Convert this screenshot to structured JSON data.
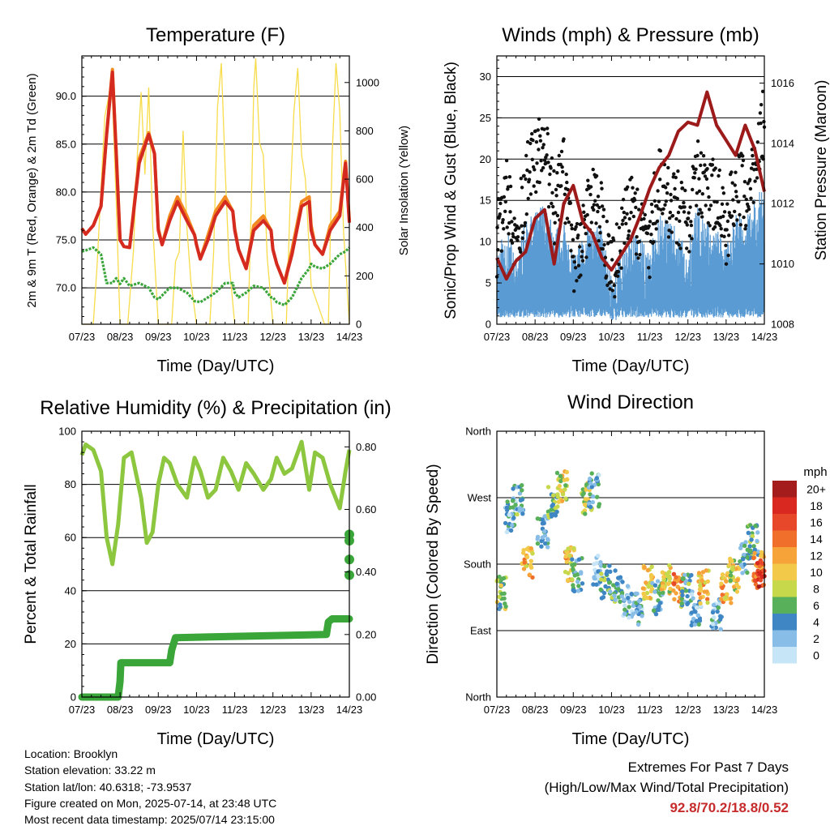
{
  "x_ticks": [
    "07/23",
    "08/23",
    "09/23",
    "10/23",
    "11/23",
    "12/23",
    "13/23",
    "14/23"
  ],
  "x_label": "Time (Day/UTC)",
  "chart_data": [
    {
      "type": "line",
      "title": "Temperature (F)",
      "xlabel": "Time (Day/UTC)",
      "ylabel": "2m & 9m T (Red, Orange) & 2m Td (Green)",
      "ylabel_right": "Solar Insolation (Yellow)",
      "ylim": [
        66.2,
        94.2
      ],
      "ylim_right": [
        0,
        1110
      ],
      "yticks": [
        {
          "v": 70,
          "t": "70.0"
        },
        {
          "v": 75,
          "t": "75.0"
        },
        {
          "v": 80,
          "t": "80.0"
        },
        {
          "v": 85,
          "t": "85.0"
        },
        {
          "v": 90,
          "t": "90.0"
        }
      ],
      "yticks_right": [
        {
          "v": 0,
          "t": "0"
        },
        {
          "v": 200,
          "t": "200"
        },
        {
          "v": 400,
          "t": "400"
        },
        {
          "v": 600,
          "t": "600"
        },
        {
          "v": 800,
          "t": "800"
        },
        {
          "v": 1000,
          "t": "1000"
        }
      ],
      "x_days": [
        0,
        0.1,
        0.3,
        0.5,
        0.65,
        0.8,
        0.9,
        1.0,
        1.1,
        1.25,
        1.5,
        1.75,
        1.9,
        2.0,
        2.1,
        2.3,
        2.5,
        2.75,
        2.95,
        3.0,
        3.1,
        3.3,
        3.5,
        3.75,
        3.95,
        4.0,
        4.1,
        4.3,
        4.5,
        4.75,
        4.95,
        5.0,
        5.1,
        5.3,
        5.5,
        5.75,
        5.95,
        6.0,
        6.1,
        6.3,
        6.5,
        6.75,
        6.9,
        7.0
      ],
      "series": [
        {
          "name": "2m T",
          "color": "#d52a20",
          "values": [
            76.2,
            75.6,
            76.5,
            78.5,
            86,
            92.5,
            84,
            75,
            74.3,
            74.2,
            83,
            86,
            84,
            76,
            74.5,
            77,
            79,
            77,
            75.5,
            74.5,
            73,
            75,
            77.5,
            79,
            78,
            76,
            74,
            72,
            76,
            77,
            76,
            74,
            72.5,
            70.5,
            73.5,
            78.5,
            79,
            76,
            74.5,
            73.5,
            76,
            77.5,
            83,
            76.8
          ]
        },
        {
          "name": "9m T",
          "color": "#f28a20",
          "values": [
            76.2,
            75.6,
            76.5,
            78.5,
            86.2,
            92.8,
            84.2,
            75,
            74.3,
            74.2,
            83.5,
            86.2,
            84,
            76.2,
            74.5,
            77.5,
            79.5,
            77.5,
            75.5,
            74.5,
            73,
            75.5,
            78,
            79.5,
            78,
            76.2,
            74,
            72,
            76.5,
            77.5,
            76,
            74,
            72.5,
            70.5,
            74,
            79,
            79.5,
            76.5,
            74.5,
            73.5,
            76.5,
            78,
            83.2,
            77
          ]
        },
        {
          "name": "2m Td",
          "color": "#3aa63a",
          "values": [
            73.8,
            73.9,
            74.2,
            73.5,
            70.5,
            70.5,
            71,
            70.4,
            71,
            70.2,
            70.5,
            70,
            69,
            68.8,
            69.2,
            70,
            70,
            69.5,
            68.6,
            68.6,
            68.5,
            69,
            69.5,
            70.5,
            70.5,
            69.5,
            69,
            69.5,
            70.2,
            70,
            69,
            69,
            68.5,
            68.2,
            69,
            71,
            72,
            72.5,
            72.2,
            72,
            72.5,
            73.5,
            73.8,
            74.2
          ]
        }
      ],
      "series_right": [
        {
          "name": "Solar Insolation",
          "color": "#f7dc4a",
          "x_days": [
            0,
            0.3,
            0.4,
            0.5,
            0.6,
            0.7,
            0.8,
            0.9,
            1.0,
            1.2,
            1.35,
            1.45,
            1.55,
            1.65,
            1.75,
            1.85,
            2.0,
            2.35,
            2.45,
            2.55,
            2.65,
            2.75,
            2.85,
            3.0,
            3.35,
            3.45,
            3.55,
            3.65,
            3.75,
            3.85,
            4.0,
            4.35,
            4.45,
            4.5,
            4.55,
            4.65,
            4.75,
            4.85,
            5.0,
            5.35,
            5.45,
            5.55,
            5.65,
            5.75,
            5.85,
            6.0,
            6.35,
            6.45,
            6.55,
            6.65,
            6.75,
            6.85,
            7.0
          ],
          "values": [
            0,
            0,
            250,
            560,
            860,
            940,
            930,
            500,
            0,
            0,
            300,
            700,
            960,
            620,
            980,
            420,
            0,
            0,
            260,
            300,
            800,
            400,
            180,
            0,
            0,
            300,
            900,
            1080,
            640,
            260,
            0,
            0,
            600,
            980,
            1100,
            750,
            700,
            280,
            0,
            0,
            500,
            880,
            1060,
            700,
            600,
            160,
            0,
            0,
            700,
            1080,
            880,
            380,
            0
          ]
        }
      ]
    },
    {
      "type": "line",
      "title": "Winds (mph) & Pressure (mb)",
      "xlabel": "Time (Day/UTC)",
      "ylabel": "Sonic/Prop Wind & Gust (Blue, Black)",
      "ylabel_right": "Station Pressure (Maroon)",
      "ylim": [
        0,
        32.5
      ],
      "ylim_right": [
        1008,
        1016.9
      ],
      "yticks": [
        {
          "v": 0,
          "t": "0"
        },
        {
          "v": 5,
          "t": "5"
        },
        {
          "v": 10,
          "t": "10"
        },
        {
          "v": 15,
          "t": "15"
        },
        {
          "v": 20,
          "t": "20"
        },
        {
          "v": 25,
          "t": "25"
        },
        {
          "v": 30,
          "t": "30"
        }
      ],
      "yticks_right": [
        {
          "v": 1008,
          "t": "1008"
        },
        {
          "v": 1010,
          "t": "1010"
        },
        {
          "v": 1012,
          "t": "1012"
        },
        {
          "v": 1014,
          "t": "1014"
        },
        {
          "v": 1016,
          "t": "1016"
        }
      ],
      "x_days": [
        0,
        0.25,
        0.5,
        0.75,
        1.0,
        1.25,
        1.5,
        1.75,
        2.0,
        2.25,
        2.5,
        2.75,
        3.0,
        3.25,
        3.5,
        3.75,
        4.0,
        4.25,
        4.5,
        4.75,
        5.0,
        5.25,
        5.5,
        5.75,
        6.0,
        6.25,
        6.5,
        6.75,
        7.0
      ],
      "series": [
        {
          "name": "Wind",
          "color": "#5a9bd4",
          "values": [
            6,
            8,
            5,
            9,
            10,
            12,
            8,
            9,
            5,
            7,
            9,
            8,
            3,
            5,
            8,
            7,
            5,
            11,
            9,
            8,
            6,
            11,
            9,
            8,
            6,
            10,
            9,
            12,
            13
          ]
        },
        {
          "name": "Gust",
          "color": "#111111",
          "values": [
            10,
            16,
            9,
            17,
            20,
            22,
            14,
            18,
            8,
            11,
            15,
            13,
            6,
            10,
            14,
            12,
            10,
            18,
            15,
            14,
            11,
            18,
            15,
            16,
            11,
            17,
            16,
            19,
            25
          ]
        }
      ],
      "series_right": [
        {
          "name": "Station Pressure",
          "color": "#9c1a1a",
          "values": [
            1010.2,
            1009.5,
            1010.1,
            1010.4,
            1011.5,
            1011.8,
            1010,
            1012,
            1012.6,
            1011.4,
            1011,
            1010.2,
            1009.8,
            1010.3,
            1010.8,
            1011.6,
            1012.5,
            1013.2,
            1013.6,
            1014.4,
            1014.7,
            1014.6,
            1015.7,
            1014.6,
            1014.1,
            1013.6,
            1014.6,
            1013.8,
            1012.4
          ]
        }
      ]
    },
    {
      "type": "line",
      "title": "Relative Humidity (%) & Precipitation (in)",
      "xlabel": "Time (Day/UTC)",
      "ylabel": "Percent & Total Rainfall",
      "ylim": [
        0,
        100
      ],
      "ylim_right": [
        0,
        0.85
      ],
      "yticks": [
        {
          "v": 0,
          "t": "0"
        },
        {
          "v": 20,
          "t": "20"
        },
        {
          "v": 40,
          "t": "40"
        },
        {
          "v": 60,
          "t": "60"
        },
        {
          "v": 80,
          "t": "80"
        },
        {
          "v": 100,
          "t": "100"
        }
      ],
      "yticks_right": [
        {
          "v": 0,
          "t": "0.00"
        },
        {
          "v": 0.2,
          "t": "0.20"
        },
        {
          "v": 0.4,
          "t": "0.40"
        },
        {
          "v": 0.6,
          "t": "0.60"
        },
        {
          "v": 0.8,
          "t": "0.80"
        }
      ],
      "series": [
        {
          "name": "Relative Humidity",
          "color": "#8dc63f",
          "x_days": [
            0,
            0.1,
            0.3,
            0.5,
            0.65,
            0.8,
            0.95,
            1.1,
            1.3,
            1.55,
            1.7,
            1.85,
            2.0,
            2.15,
            2.3,
            2.5,
            2.75,
            2.95,
            3.1,
            3.3,
            3.5,
            3.7,
            3.9,
            4.1,
            4.3,
            4.5,
            4.75,
            4.95,
            5.1,
            5.3,
            5.5,
            5.75,
            5.95,
            6.1,
            6.3,
            6.5,
            6.75,
            6.9,
            7.0
          ],
          "values": [
            91,
            95,
            93,
            85,
            60,
            50,
            65,
            90,
            92,
            75,
            58,
            62,
            80,
            90,
            88,
            80,
            75,
            90,
            85,
            75,
            78,
            90,
            85,
            78,
            88,
            84,
            78,
            82,
            90,
            84,
            86,
            96,
            78,
            92,
            90,
            80,
            71,
            85,
            93
          ]
        }
      ],
      "series_right": [
        {
          "name": "Total Precipitation",
          "color": "#3aa63a",
          "x_days": [
            0,
            0.95,
            1.0,
            1.02,
            1.1,
            2.3,
            2.35,
            2.45,
            6.4,
            6.45,
            6.55,
            7.0
          ],
          "values": [
            0,
            0,
            0.05,
            0.11,
            0.11,
            0.11,
            0.15,
            0.19,
            0.2,
            0.24,
            0.25,
            0.25
          ]
        }
      ],
      "extra_points": [
        {
          "day": 7.0,
          "value": 0.52
        },
        {
          "day": 7.0,
          "value": 0.5
        },
        {
          "day": 7.0,
          "value": 0.44
        },
        {
          "day": 7.0,
          "value": 0.39
        }
      ]
    },
    {
      "type": "scatter",
      "title": "Wind Direction",
      "xlabel": "Time (Day/UTC)",
      "ylabel": "Direction (Colored By Speed)",
      "ylim": [
        0,
        360
      ],
      "yticks": [
        {
          "v": 0,
          "t": "North"
        },
        {
          "v": 90,
          "t": "East"
        },
        {
          "v": 180,
          "t": "South"
        },
        {
          "v": 270,
          "t": "West"
        },
        {
          "v": 360,
          "t": "North"
        }
      ],
      "legend_title": "mph",
      "legend": [
        {
          "label": "20+",
          "color": "#a51c1c"
        },
        {
          "label": "18",
          "color": "#d8281f"
        },
        {
          "label": "16",
          "color": "#e8482a"
        },
        {
          "label": "14",
          "color": "#f0702b"
        },
        {
          "label": "12",
          "color": "#f6a43a"
        },
        {
          "label": "10",
          "color": "#f3c94a"
        },
        {
          "label": "8",
          "color": "#c7d94a"
        },
        {
          "label": "6",
          "color": "#58b05b"
        },
        {
          "label": "4",
          "color": "#3f86c4"
        },
        {
          "label": "2",
          "color": "#87bde6"
        },
        {
          "label": "0",
          "color": "#c6e6f7"
        }
      ],
      "clusters": [
        {
          "day": 0.1,
          "dir": 140,
          "speed": 8
        },
        {
          "day": 0.35,
          "dir": 245,
          "speed": 4
        },
        {
          "day": 0.55,
          "dir": 265,
          "speed": 6
        },
        {
          "day": 0.8,
          "dir": 185,
          "speed": 12
        },
        {
          "day": 1.2,
          "dir": 225,
          "speed": 5
        },
        {
          "day": 1.45,
          "dir": 265,
          "speed": 7
        },
        {
          "day": 1.7,
          "dir": 285,
          "speed": 10
        },
        {
          "day": 1.9,
          "dir": 180,
          "speed": 12
        },
        {
          "day": 2.1,
          "dir": 165,
          "speed": 6
        },
        {
          "day": 2.35,
          "dir": 270,
          "speed": 9
        },
        {
          "day": 2.55,
          "dir": 280,
          "speed": 4
        },
        {
          "day": 2.65,
          "dir": 175,
          "speed": 2
        },
        {
          "day": 2.85,
          "dir": 155,
          "speed": 6
        },
        {
          "day": 3.15,
          "dir": 150,
          "speed": 6
        },
        {
          "day": 3.4,
          "dir": 130,
          "speed": 4
        },
        {
          "day": 3.7,
          "dir": 120,
          "speed": 4
        },
        {
          "day": 3.95,
          "dir": 155,
          "speed": 11
        },
        {
          "day": 4.2,
          "dir": 135,
          "speed": 5
        },
        {
          "day": 4.45,
          "dir": 160,
          "speed": 10
        },
        {
          "day": 4.75,
          "dir": 150,
          "speed": 14
        },
        {
          "day": 4.95,
          "dir": 145,
          "speed": 6
        },
        {
          "day": 5.2,
          "dir": 120,
          "speed": 4
        },
        {
          "day": 5.4,
          "dir": 150,
          "speed": 12
        },
        {
          "day": 5.75,
          "dir": 110,
          "speed": 4
        },
        {
          "day": 6.0,
          "dir": 150,
          "speed": 12
        },
        {
          "day": 6.2,
          "dir": 165,
          "speed": 10
        },
        {
          "day": 6.5,
          "dir": 190,
          "speed": 5
        },
        {
          "day": 6.7,
          "dir": 210,
          "speed": 6
        },
        {
          "day": 6.85,
          "dir": 175,
          "speed": 14
        },
        {
          "day": 6.95,
          "dir": 170,
          "speed": 18
        }
      ]
    }
  ],
  "station_info": [
    "Location: Brooklyn",
    "Station elevation: 33.22 m",
    "Station lat/lon: 40.6318; -73.9537",
    "Figure created on Mon, 2025-07-14, at 23:48 UTC",
    "Most recent data timestamp: 2025/07/14 23:15:00"
  ],
  "extremes": {
    "heading": "Extremes For Past 7 Days",
    "subheading": "(High/Low/Max Wind/Total Precipitation)",
    "value": "92.8/70.2/18.8/0.52"
  }
}
